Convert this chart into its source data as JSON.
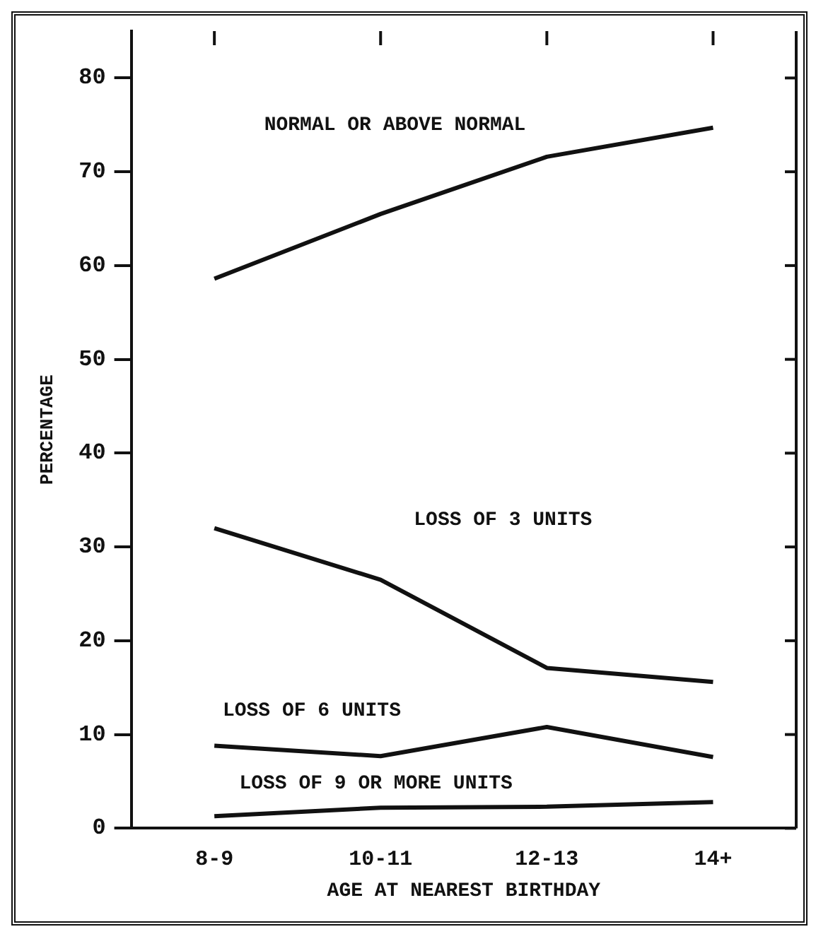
{
  "chart_data": {
    "type": "line",
    "xlabel": "AGE AT NEAREST BIRTHDAY",
    "ylabel": "PERCENTAGE",
    "categories": [
      "8-9",
      "10-11",
      "12-13",
      "14+"
    ],
    "ylim": [
      0,
      85
    ],
    "yticks": [
      0,
      10,
      20,
      30,
      40,
      50,
      60,
      70,
      80
    ],
    "grid": false,
    "legend": false,
    "marker": "none",
    "line_style": "solid",
    "series": [
      {
        "name": "NORMAL OR ABOVE NORMAL",
        "color": "#111111",
        "values": [
          58.6,
          65.5,
          71.6,
          74.7
        ]
      },
      {
        "name": "LOSS OF 3 UNITS",
        "color": "#111111",
        "values": [
          32,
          26.5,
          17.1,
          15.6
        ]
      },
      {
        "name": "LOSS OF 6 UNITS",
        "color": "#111111",
        "values": [
          8.8,
          7.7,
          10.8,
          7.6
        ]
      },
      {
        "name": "LOSS OF 9 OR MORE UNITS",
        "color": "#111111",
        "values": [
          1.3,
          2.2,
          2.3,
          2.8
        ]
      }
    ]
  }
}
